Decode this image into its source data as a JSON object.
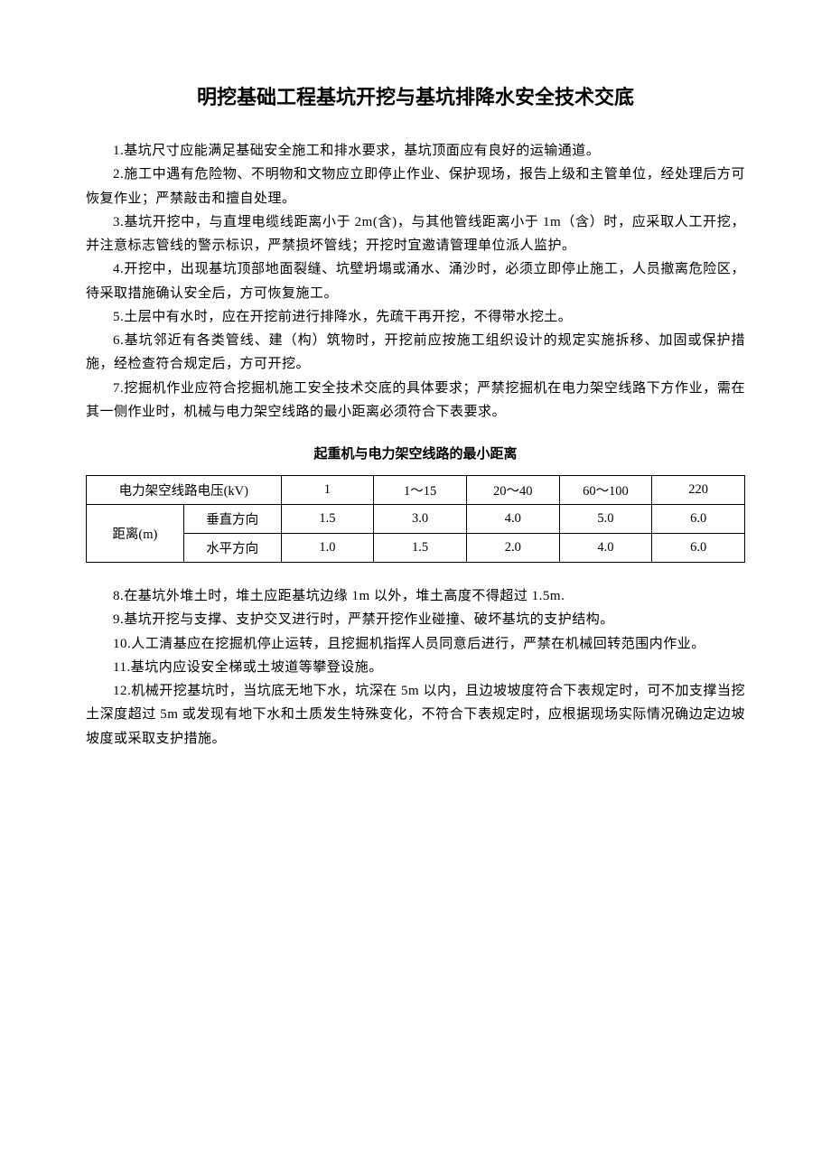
{
  "title": "明挖基础工程基坑开挖与基坑排降水安全技术交底",
  "paragraphs_before": [
    "1.基坑尺寸应能满足基础安全施工和排水要求，基坑顶面应有良好的运输通道。",
    "2.施工中遇有危险物、不明物和文物应立即停止作业、保护现场，报告上级和主管单位，经处理后方可恢复作业；严禁敲击和擅自处理。",
    "3.基坑开挖中，与直埋电缆线距离小于 2m(含)，与其他管线距离小于 1m（含）时，应采取人工开挖，并注意标志管线的警示标识，严禁损坏管线；开挖时宜邀请管理单位派人监护。",
    "4.开挖中，出现基坑顶部地面裂缝、坑壁坍塌或涌水、涌沙时，必须立即停止施工，人员撤离危险区，待采取措施确认安全后，方可恢复施工。",
    "5.土层中有水时，应在开挖前进行排降水，先疏干再开挖，不得带水挖土。",
    "6.基坑邻近有各类管线、建（构）筑物时，开挖前应按施工组织设计的规定实施拆移、加固或保护措施，经检查符合规定后，方可开挖。",
    "7.挖掘机作业应符合挖掘机施工安全技术交底的具体要求；严禁挖掘机在电力架空线路下方作业，需在其一侧作业时，机械与电力架空线路的最小距离必须符合下表要求。"
  ],
  "table": {
    "title": "起重机与电力架空线路的最小距离",
    "header_label": "电力架空线路电压(kV)",
    "voltages": [
      "1",
      "1～15",
      "20～40",
      "60～100",
      "220"
    ],
    "distance_label": "距离(m)",
    "rows": [
      {
        "label": "垂直方向",
        "values": [
          "1.5",
          "3.0",
          "4.0",
          "5.0",
          "6.0"
        ]
      },
      {
        "label": "水平方向",
        "values": [
          "1.0",
          "1.5",
          "2.0",
          "4.0",
          "6.0"
        ]
      }
    ]
  },
  "paragraphs_after": [
    "8.在基坑外堆土时，堆土应距基坑边缘 1m 以外，堆土高度不得超过 1.5m.",
    "9.基坑开挖与支撑、支护交叉进行时，严禁开挖作业碰撞、破坏基坑的支护结构。",
    "10.人工清基应在挖掘机停止运转，且挖掘机指挥人员同意后进行，严禁在机械回转范围内作业。",
    "11.基坑内应设安全梯或土坡道等攀登设施。",
    "12.机械开挖基坑时，当坑底无地下水，坑深在 5m 以内，且边坡坡度符合下表规定时，可不加支撑当挖土深度超过 5m 或发现有地下水和土质发生特殊变化，不符合下表规定时，应根据现场实际情况确边定边坡坡度或采取支护措施。"
  ]
}
